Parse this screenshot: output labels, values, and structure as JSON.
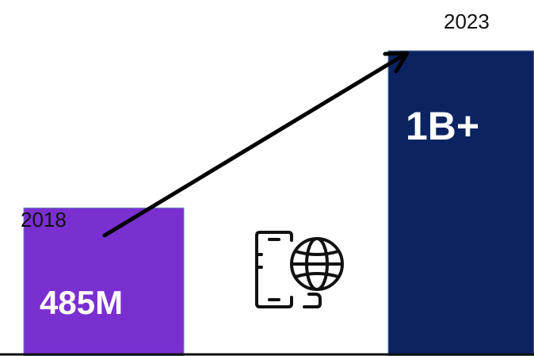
{
  "chart_data": {
    "type": "bar",
    "categories": [
      "2018",
      "2023"
    ],
    "values": [
      485,
      1000
    ],
    "value_labels": [
      "485M",
      "1B+"
    ],
    "title": "",
    "xlabel": "",
    "ylabel": "",
    "colors": [
      "#7a2fd0",
      "#0b2461"
    ],
    "grid": false,
    "trend_arrow": true
  },
  "icons": [
    "mobile-globe-icon",
    "arrow-icon"
  ]
}
